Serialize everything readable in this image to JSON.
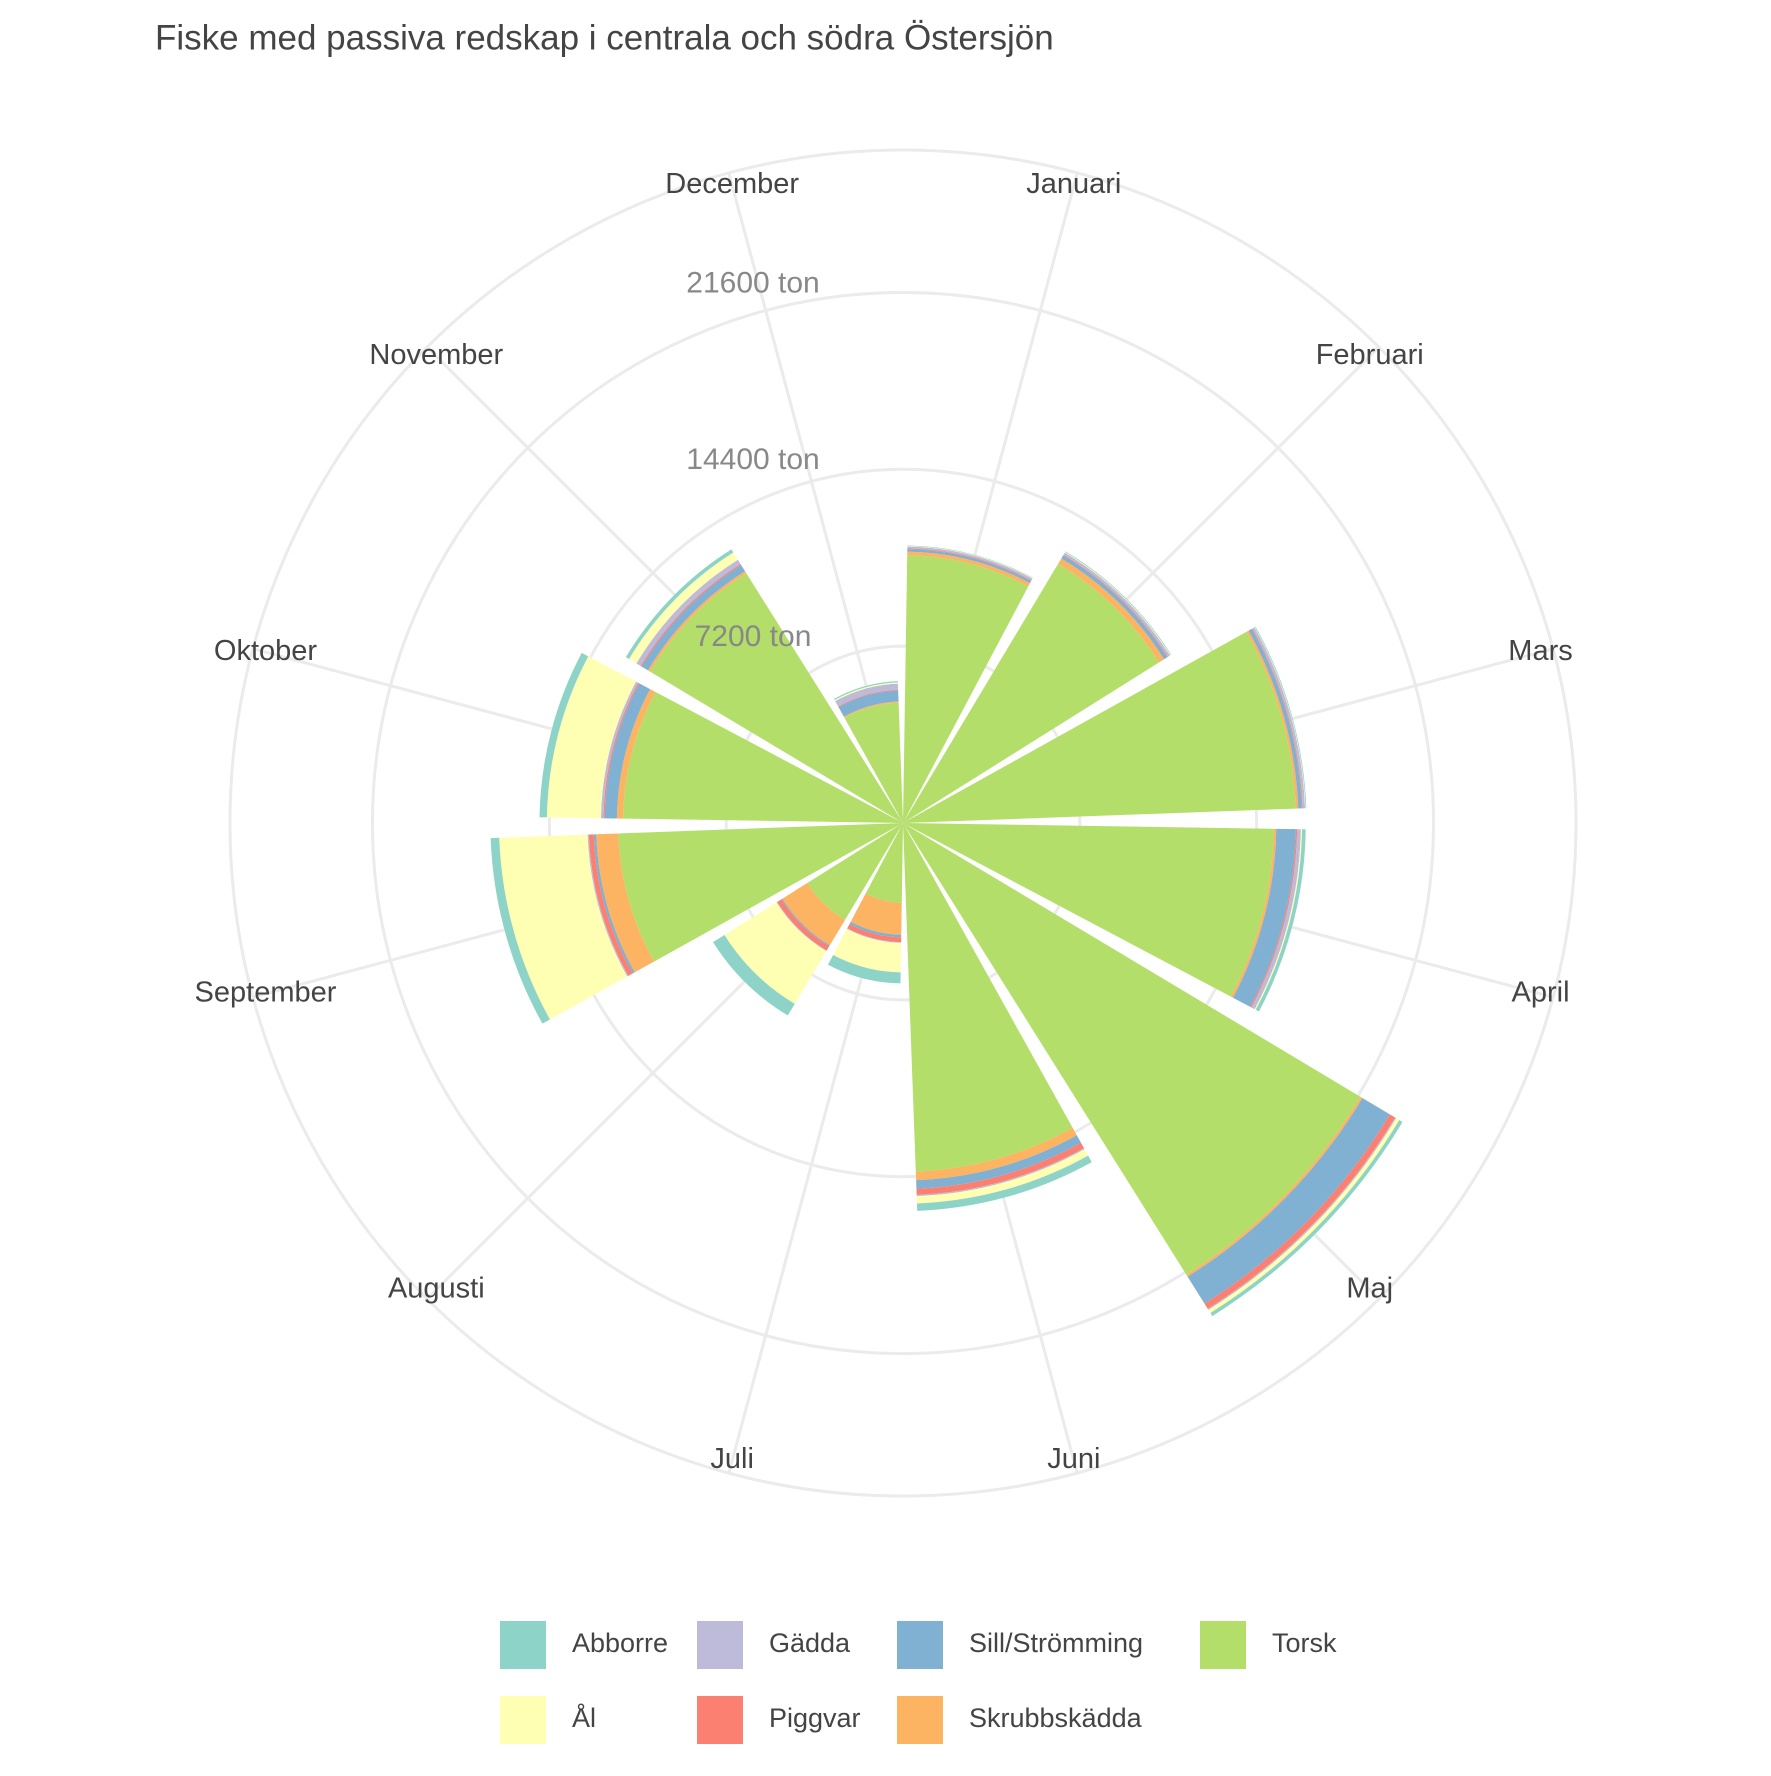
{
  "chart_data": {
    "type": "polar-stacked-bar",
    "title": "Fiske med passiva redskap i centrala och södra Östersjön",
    "categories": [
      "Januari",
      "Februari",
      "Mars",
      "April",
      "Maj",
      "Juni",
      "Juli",
      "Augusti",
      "September",
      "Oktober",
      "November",
      "December"
    ],
    "series": [
      {
        "name": "Torsk",
        "color": "#B3DE69",
        "values": [
          10900,
          12300,
          16000,
          15100,
          21700,
          14200,
          3250,
          4600,
          11600,
          11400,
          12000,
          4900
        ]
      },
      {
        "name": "Skrubbskädda",
        "color": "#FDB462",
        "values": [
          150,
          250,
          100,
          100,
          100,
          350,
          1300,
          1200,
          900,
          250,
          100,
          50
        ]
      },
      {
        "name": "Sill/Strömming",
        "color": "#80B1D3",
        "values": [
          100,
          150,
          150,
          800,
          1300,
          350,
          100,
          50,
          100,
          500,
          300,
          450
        ]
      },
      {
        "name": "Piggvar",
        "color": "#FB8072",
        "values": [
          30,
          30,
          30,
          50,
          250,
          250,
          200,
          200,
          200,
          50,
          50,
          30
        ]
      },
      {
        "name": "Gädda",
        "color": "#BEBADA",
        "values": [
          80,
          100,
          100,
          150,
          50,
          50,
          30,
          30,
          50,
          100,
          200,
          250
        ]
      },
      {
        "name": "Ål",
        "color": "#FFFFB3",
        "values": [
          20,
          30,
          20,
          50,
          150,
          300,
          1200,
          2500,
          3600,
          2200,
          350,
          50
        ]
      },
      {
        "name": "Abborre",
        "color": "#8DD3C7",
        "values": [
          20,
          30,
          30,
          150,
          150,
          300,
          450,
          550,
          350,
          300,
          150,
          50
        ]
      }
    ],
    "legend_order": [
      "Abborre",
      "Ål",
      "Gädda",
      "Piggvar",
      "Sill/Strömming",
      "Skrubbskädda",
      "Torsk"
    ],
    "ylim": [
      0,
      27400
    ],
    "yticks": [
      {
        "value": 7200,
        "label": "7200 ton"
      },
      {
        "value": 14400,
        "label": "14400 ton"
      },
      {
        "value": 21600,
        "label": "21600 ton"
      }
    ],
    "grid": true
  }
}
